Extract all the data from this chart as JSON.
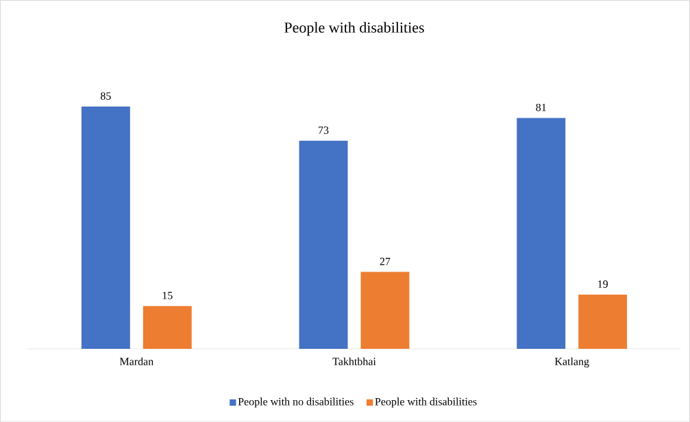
{
  "chart_data": {
    "type": "bar",
    "title": "People with disabilities",
    "categories": [
      "Mardan",
      "Takhtbhai",
      "Katlang"
    ],
    "series": [
      {
        "name": "People with no disabilities",
        "color": "#4472c4",
        "values": [
          85,
          73,
          81
        ]
      },
      {
        "name": "People with disabilities",
        "color": "#ed7d31",
        "values": [
          15,
          27,
          19
        ]
      }
    ],
    "data_labels": true,
    "legend": "bottom"
  }
}
